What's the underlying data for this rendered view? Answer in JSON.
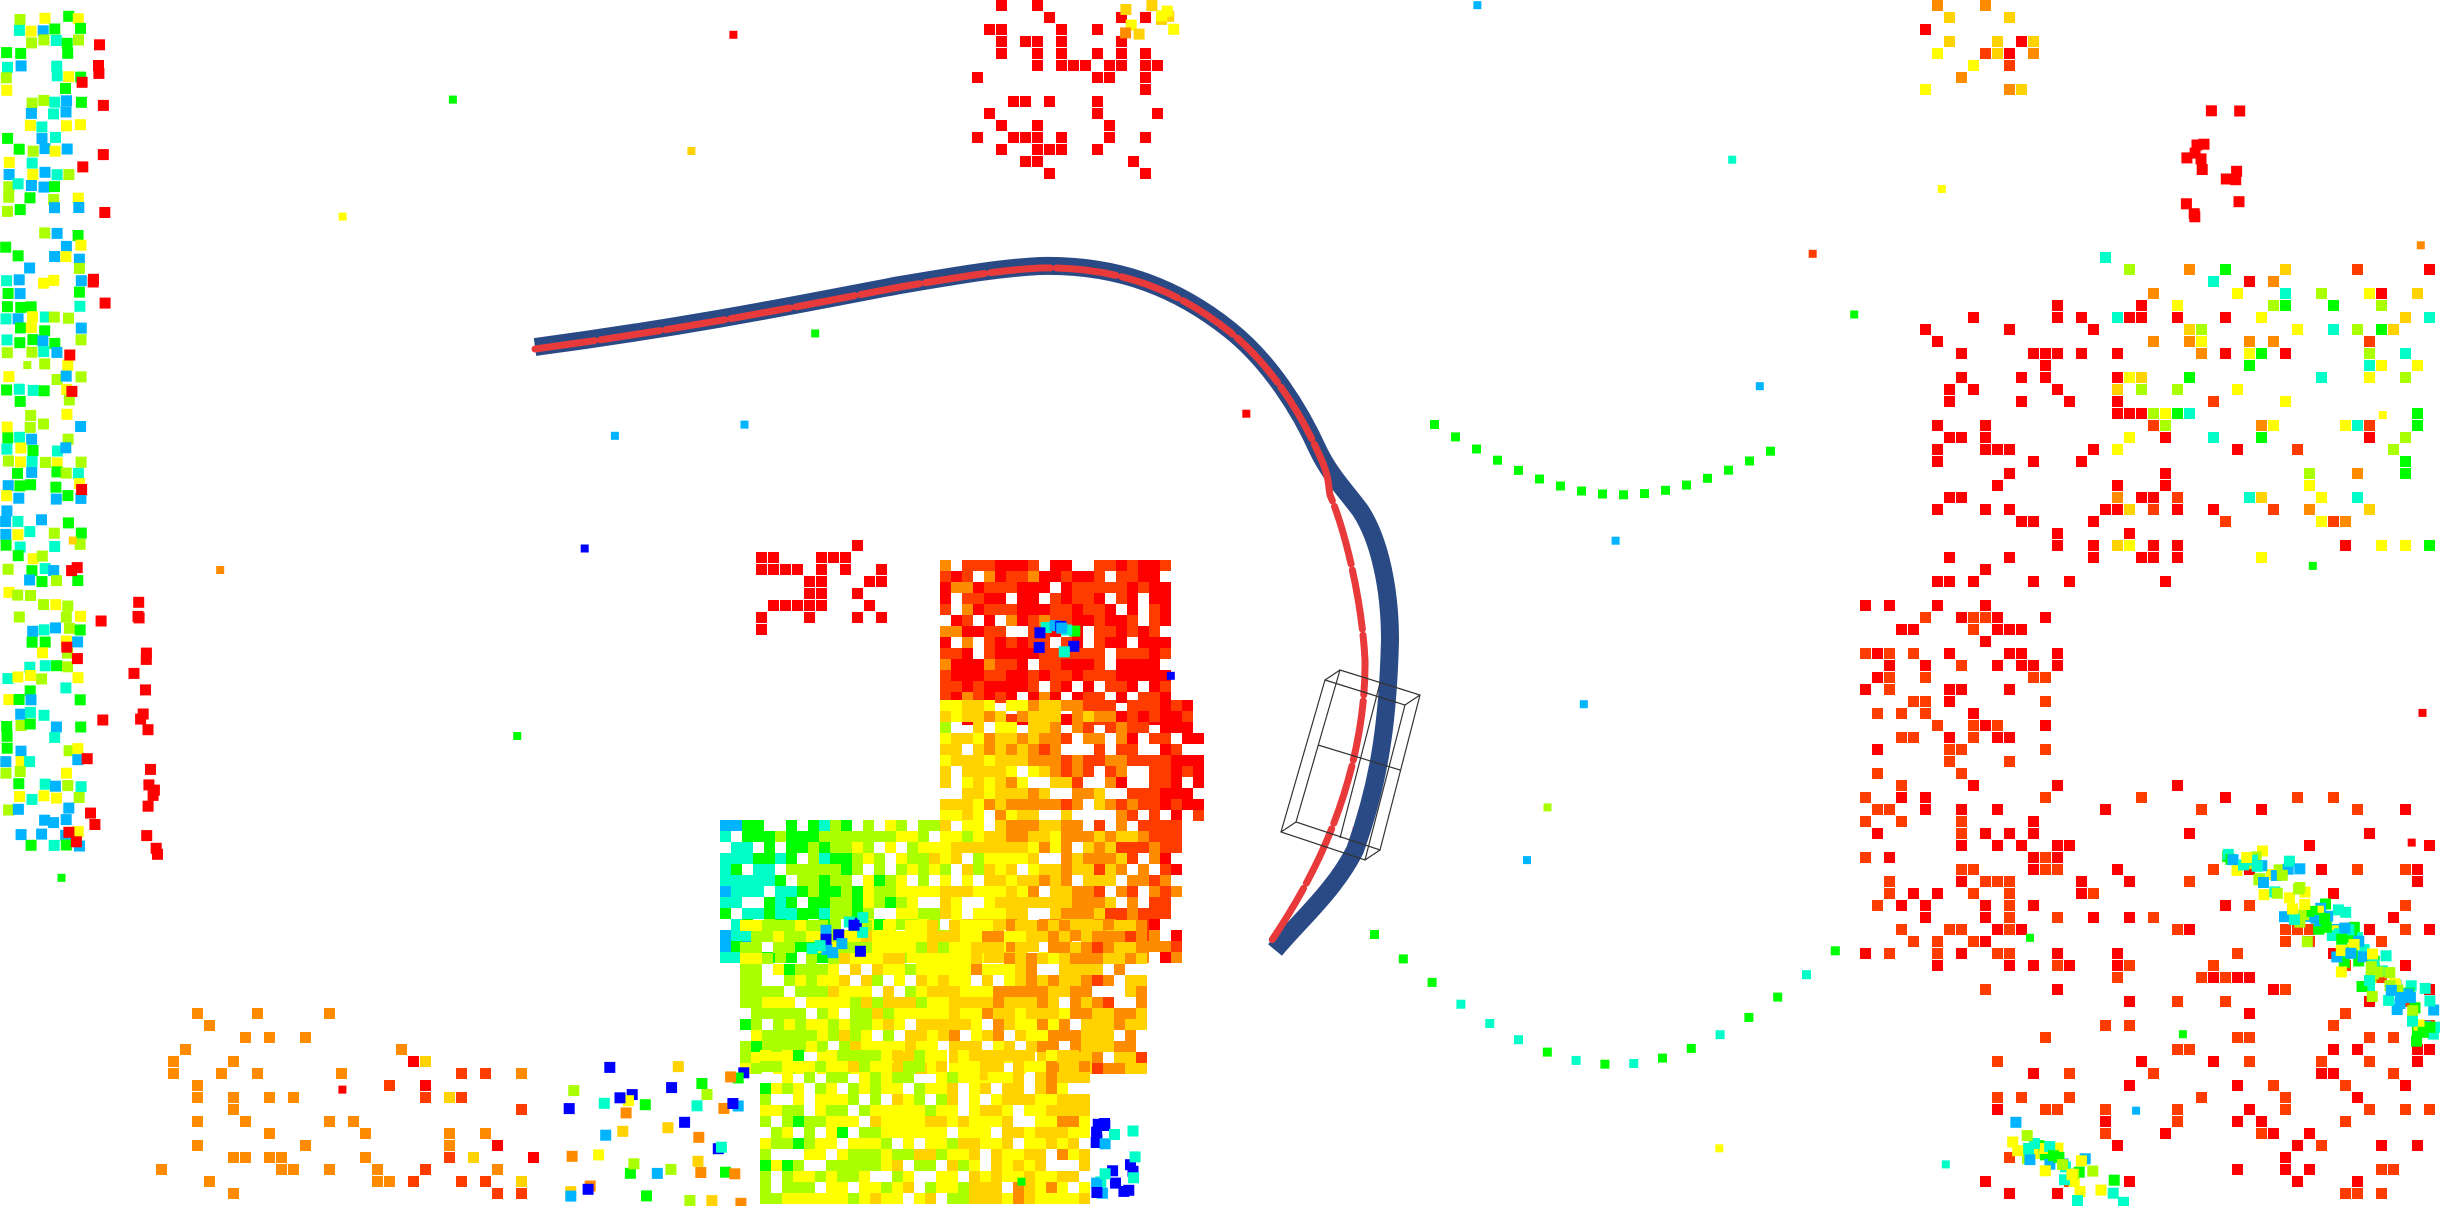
{
  "view": {
    "type": "lidar-birds-eye-view",
    "background_color": "#ffffff"
  },
  "colormap": [
    "#0000ff",
    "#00b4ff",
    "#00ffc8",
    "#00ff00",
    "#aaff00",
    "#ffff00",
    "#ffd200",
    "#ff8c00",
    "#ff3c00",
    "#ff0000"
  ],
  "trajectories": {
    "ground_truth_color": "#2a4a86",
    "prediction_color": "#e83a3a"
  },
  "ego_vehicle": {
    "outline_color": "#333333"
  }
}
